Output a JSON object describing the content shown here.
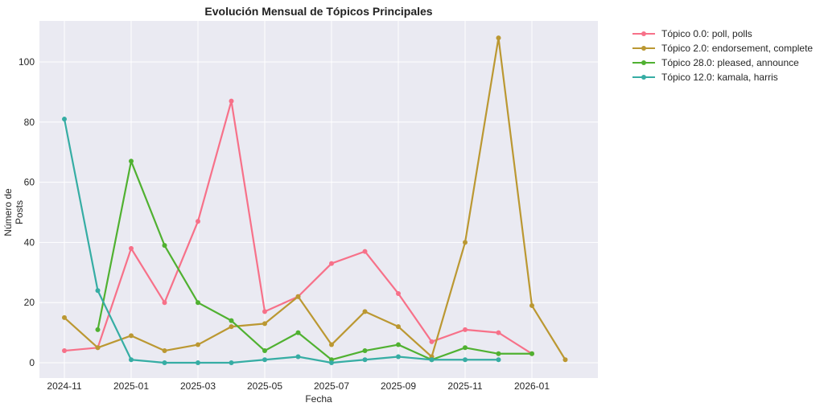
{
  "chart_data": {
    "type": "line",
    "title": "Evolución Mensual de Tópicos Principales",
    "xlabel": "Fecha",
    "ylabel": "Número de Posts",
    "x": [
      "2024-11",
      "2024-12",
      "2025-01",
      "2025-02",
      "2025-03",
      "2025-04",
      "2025-05",
      "2025-06",
      "2025-07",
      "2025-08",
      "2025-09",
      "2025-10",
      "2025-11",
      "2025-12",
      "2026-01",
      "2026-02"
    ],
    "x_ticks": [
      "2024-11",
      "2025-01",
      "2025-03",
      "2025-05",
      "2025-07",
      "2025-09",
      "2025-11",
      "2026-01"
    ],
    "y_ticks": [
      0,
      20,
      40,
      60,
      80,
      100
    ],
    "ylim": [
      -5,
      113
    ],
    "grid": true,
    "legend_position": "outside upper right",
    "series": [
      {
        "name": "Tópico 0.0: poll, polls",
        "color": "#f77189",
        "values": [
          4,
          5,
          38,
          20,
          47,
          87,
          17,
          22,
          33,
          37,
          23,
          7,
          11,
          10,
          3,
          null
        ]
      },
      {
        "name": "Tópico 2.0: endorsement, complete",
        "color": "#bb9832",
        "values": [
          15,
          5,
          9,
          4,
          6,
          12,
          13,
          22,
          6,
          17,
          12,
          2,
          40,
          108,
          19,
          1
        ]
      },
      {
        "name": "Tópico 28.0: pleased, announce",
        "color": "#50b131",
        "values": [
          null,
          11,
          67,
          39,
          20,
          14,
          4,
          10,
          1,
          4,
          6,
          1,
          5,
          3,
          3,
          null
        ]
      },
      {
        "name": "Tópico 12.0: kamala, harris",
        "color": "#36ada4",
        "values": [
          81,
          24,
          1,
          0,
          0,
          0,
          1,
          2,
          0,
          1,
          2,
          1,
          1,
          1,
          null,
          null
        ]
      }
    ]
  }
}
